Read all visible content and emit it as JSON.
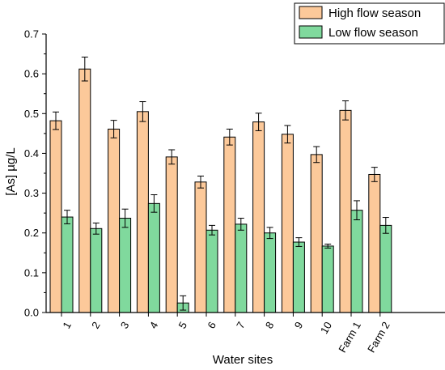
{
  "chart_data": {
    "type": "bar",
    "title": "",
    "xlabel": "Water sites",
    "ylabel": "[As] µg/L",
    "ylim": [
      0,
      0.7
    ],
    "yticks": [
      "0.0",
      "0.1",
      "0.2",
      "0.3",
      "0.4",
      "0.5",
      "0.6",
      "0.7"
    ],
    "categories": [
      "1",
      "2",
      "3",
      "4",
      "5",
      "6",
      "7",
      "8",
      "9",
      "10",
      "Farm 1",
      "Farm 2"
    ],
    "series": [
      {
        "name": "High flow season",
        "color": "#FCC99A",
        "values": [
          0.482,
          0.612,
          0.461,
          0.505,
          0.391,
          0.328,
          0.441,
          0.479,
          0.448,
          0.397,
          0.508,
          0.347
        ],
        "errors": [
          0.022,
          0.03,
          0.022,
          0.025,
          0.018,
          0.015,
          0.02,
          0.022,
          0.022,
          0.02,
          0.024,
          0.018
        ]
      },
      {
        "name": "Low flow season",
        "color": "#80D99D",
        "values": [
          0.24,
          0.211,
          0.237,
          0.274,
          0.024,
          0.207,
          0.222,
          0.2,
          0.177,
          0.167,
          0.257,
          0.219
        ],
        "errors": [
          0.017,
          0.014,
          0.023,
          0.022,
          0.018,
          0.012,
          0.015,
          0.014,
          0.011,
          0.005,
          0.024,
          0.02
        ]
      }
    ],
    "legend_position": "top-right",
    "grid": false
  }
}
